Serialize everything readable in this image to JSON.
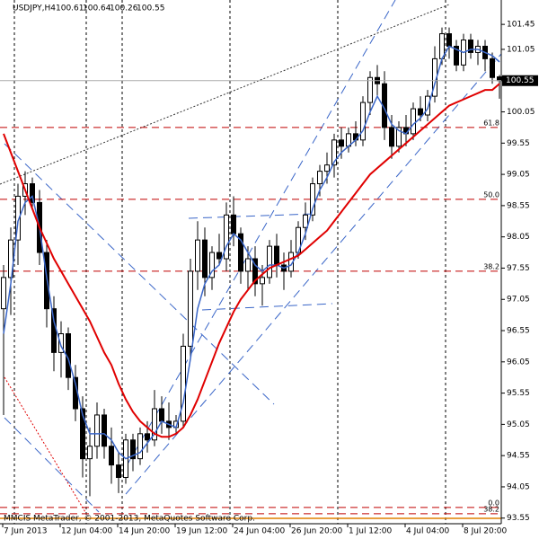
{
  "chart_data": {
    "type": "candlestick",
    "symbol": "USDJPY,H4",
    "footer": "MMCIS MetaTrader, © 2001-2013, MetaQuotes Software Corp.",
    "categories": [
      "7 Jun 2013",
      null,
      null,
      null,
      null,
      null,
      null,
      null,
      "12 Jun 04:00",
      null,
      null,
      null,
      null,
      null,
      null,
      null,
      "14 Jun 20:00",
      null,
      null,
      null,
      null,
      null,
      null,
      null,
      "19 Jun 12:00",
      null,
      null,
      null,
      null,
      null,
      null,
      null,
      "24 Jun 04:00",
      null,
      null,
      null,
      null,
      null,
      null,
      null,
      "26 Jun 20:00",
      null,
      null,
      null,
      null,
      null,
      null,
      null,
      "1 Jul 12:00",
      null,
      null,
      null,
      null,
      null,
      null,
      null,
      "4 Jul 04:00",
      null,
      null,
      null,
      null,
      null,
      null,
      null,
      "8 Jul 20:00",
      null,
      null,
      null,
      null,
      null
    ],
    "open": [
      96.9,
      97.4,
      98.0,
      98.7,
      98.9,
      98.6,
      97.8,
      96.9,
      96.2,
      96.5,
      95.8,
      95.3,
      94.5,
      94.7,
      95.2,
      94.7,
      94.4,
      94.2,
      94.8,
      94.5,
      94.9,
      94.8,
      95.3,
      95.1,
      95.0,
      95.1,
      96.3,
      97.5,
      98.0,
      97.4,
      97.8,
      97.7,
      98.4,
      98.1,
      97.5,
      97.7,
      97.3,
      97.4,
      97.9,
      97.6,
      97.5,
      97.8,
      98.2,
      98.4,
      98.9,
      99.1,
      99.2,
      99.6,
      99.5,
      99.7,
      99.6,
      100.2,
      100.6,
      100.5,
      99.8,
      99.5,
      99.8,
      99.7,
      100.1,
      100.0,
      100.3,
      100.9,
      101.3,
      101.1,
      100.8,
      101.2,
      101.0,
      101.1,
      100.9,
      100.61
    ],
    "high": [
      97.6,
      98.2,
      98.9,
      99.1,
      99.0,
      98.8,
      98.0,
      97.1,
      96.7,
      96.6,
      96.0,
      95.5,
      95.0,
      95.4,
      95.3,
      95.0,
      94.6,
      94.9,
      94.9,
      95.0,
      95.1,
      95.6,
      95.5,
      95.4,
      95.2,
      96.5,
      97.7,
      98.3,
      98.2,
      97.9,
      98.1,
      98.6,
      98.7,
      98.2,
      97.9,
      97.9,
      97.6,
      98.0,
      98.1,
      97.8,
      98.0,
      98.3,
      98.6,
      99.0,
      99.2,
      99.4,
      99.7,
      99.8,
      99.8,
      99.9,
      100.3,
      100.7,
      100.8,
      100.7,
      100.0,
      99.9,
      100.0,
      100.2,
      100.3,
      100.4,
      101.1,
      101.4,
      101.4,
      101.2,
      101.3,
      101.3,
      101.2,
      101.2,
      101.0,
      100.64
    ],
    "low": [
      95.2,
      96.8,
      97.6,
      98.4,
      98.5,
      97.6,
      96.6,
      95.9,
      95.8,
      95.6,
      95.1,
      94.2,
      93.9,
      94.5,
      94.5,
      94.1,
      93.95,
      94.1,
      94.3,
      94.4,
      94.6,
      94.7,
      94.9,
      94.8,
      94.9,
      95.0,
      96.1,
      97.2,
      97.1,
      97.2,
      97.6,
      97.5,
      97.9,
      97.3,
      97.2,
      97.1,
      96.95,
      97.3,
      97.4,
      97.2,
      97.4,
      97.7,
      98.0,
      98.3,
      98.7,
      98.9,
      99.0,
      99.3,
      99.4,
      99.5,
      99.5,
      100.0,
      100.3,
      99.6,
      99.3,
      99.4,
      99.5,
      99.6,
      99.9,
      99.9,
      100.2,
      100.8,
      100.9,
      100.7,
      100.7,
      100.9,
      100.8,
      100.7,
      100.5,
      100.26
    ],
    "close": [
      97.4,
      98.0,
      98.7,
      98.9,
      98.6,
      97.8,
      96.9,
      96.2,
      96.5,
      95.8,
      95.3,
      94.5,
      94.7,
      95.2,
      94.7,
      94.4,
      94.2,
      94.8,
      94.5,
      94.9,
      94.8,
      95.3,
      95.1,
      95.0,
      95.1,
      96.3,
      97.5,
      98.0,
      97.4,
      97.8,
      97.7,
      98.4,
      98.1,
      97.5,
      97.7,
      97.3,
      97.4,
      97.9,
      97.6,
      97.5,
      97.8,
      98.2,
      98.4,
      98.9,
      99.1,
      99.2,
      99.6,
      99.5,
      99.7,
      99.6,
      100.2,
      100.6,
      100.5,
      99.8,
      99.5,
      99.8,
      99.7,
      100.1,
      100.0,
      100.3,
      100.9,
      101.3,
      101.1,
      100.8,
      101.2,
      101.0,
      101.1,
      100.9,
      100.6,
      100.55
    ],
    "lines": [
      {
        "color": "#3a66c8",
        "values": [
          96.5,
          97.3,
          98.3,
          98.6,
          98.7,
          98.2,
          97.4,
          96.7,
          96.3,
          96.1,
          95.7,
          95.2,
          94.9,
          94.9,
          94.9,
          94.8,
          94.6,
          94.5,
          94.55,
          94.6,
          94.75,
          94.9,
          95.1,
          95.05,
          95.0,
          95.4,
          96.1,
          96.9,
          97.3,
          97.5,
          97.6,
          97.9,
          98.1,
          98.0,
          97.8,
          97.6,
          97.5,
          97.6,
          97.6,
          97.55,
          97.6,
          97.8,
          98.1,
          98.5,
          98.8,
          99.0,
          99.25,
          99.4,
          99.5,
          99.6,
          99.75,
          100.05,
          100.3,
          100.1,
          99.85,
          99.75,
          99.7,
          99.85,
          99.95,
          100.1,
          100.5,
          100.9,
          101.1,
          101.05,
          101.0,
          101.05,
          101.05,
          101.0,
          100.95,
          100.85
        ]
      },
      {
        "color": "#e00000",
        "values": [
          99.7,
          99.4,
          99.1,
          98.8,
          98.5,
          98.2,
          97.95,
          97.7,
          97.5,
          97.3,
          97.1,
          96.9,
          96.7,
          96.45,
          96.2,
          96.0,
          95.7,
          95.45,
          95.25,
          95.1,
          95.0,
          94.9,
          94.85,
          94.85,
          94.9,
          95.0,
          95.2,
          95.45,
          95.75,
          96.05,
          96.35,
          96.6,
          96.85,
          97.05,
          97.2,
          97.35,
          97.45,
          97.55,
          97.6,
          97.65,
          97.7,
          97.75,
          97.85,
          97.95,
          98.05,
          98.15,
          98.3,
          98.45,
          98.6,
          98.75,
          98.9,
          99.05,
          99.15,
          99.25,
          99.35,
          99.45,
          99.55,
          99.65,
          99.75,
          99.85,
          99.95,
          100.05,
          100.15,
          100.2,
          100.25,
          100.3,
          100.35,
          100.4,
          100.4,
          100.5
        ]
      }
    ],
    "fib_levels": [
      {
        "value": 99.8,
        "label": "61.8"
      },
      {
        "value": 98.65,
        "label": "50.0"
      },
      {
        "value": 97.5,
        "label": "38.2"
      },
      {
        "value": 93.72,
        "label": "0.0"
      },
      {
        "value": 93.62,
        "label": "38.2"
      }
    ],
    "fib_color": "#c00000",
    "ylim": [
      93.46,
      101.84
    ],
    "yticks": [
      101.45,
      101.05,
      100.05,
      99.55,
      99.05,
      98.55,
      98.05,
      97.55,
      97.05,
      96.55,
      96.05,
      95.55,
      95.05,
      94.55,
      94.05,
      93.55
    ]
  }
}
